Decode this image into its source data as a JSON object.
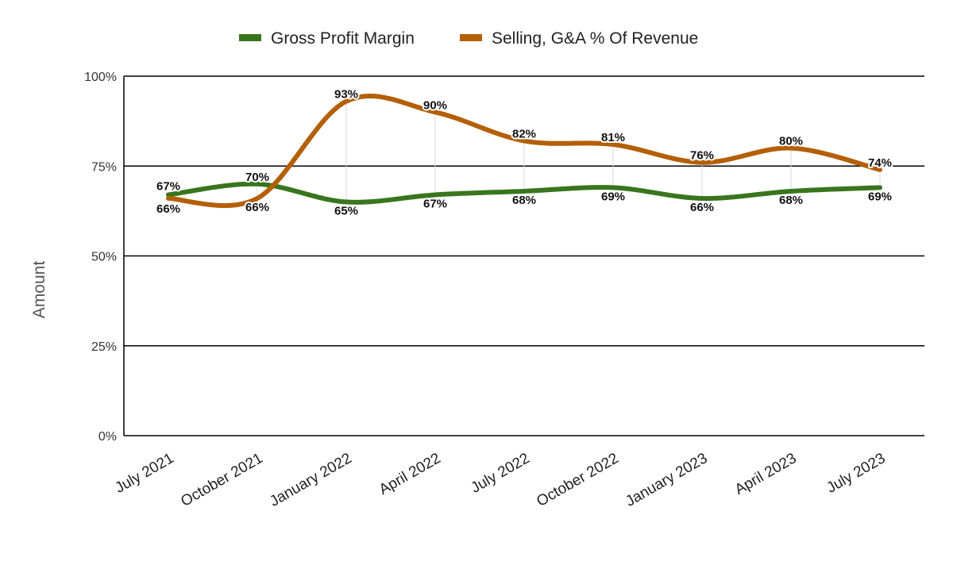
{
  "chart_data": {
    "type": "line",
    "title": "",
    "xlabel": "",
    "ylabel": "Amount",
    "categories": [
      "July 2021",
      "October 2021",
      "January 2022",
      "April 2022",
      "July 2022",
      "October 2022",
      "January 2023",
      "April 2023",
      "July 2023"
    ],
    "ylim": [
      0,
      100
    ],
    "yticks": [
      "0%",
      "25%",
      "50%",
      "75%",
      "100%"
    ],
    "legend_position": "top",
    "grid": true,
    "smooth": true,
    "series": [
      {
        "name": "Gross Profit Margin",
        "color": "#38761d",
        "values": [
          67,
          70,
          65,
          67,
          68,
          69,
          66,
          68,
          69
        ],
        "labels": [
          "67%",
          "70%",
          "65%",
          "67%",
          "68%",
          "69%",
          "66%",
          "68%",
          "69%"
        ]
      },
      {
        "name": "Selling, G&A % Of Revenue",
        "color": "#b45f06",
        "values": [
          66,
          66,
          93,
          90,
          82,
          81,
          76,
          80,
          74
        ],
        "labels": [
          "66%",
          "66%",
          "93%",
          "90%",
          "82%",
          "81%",
          "76%",
          "80%",
          "74%"
        ]
      }
    ]
  }
}
